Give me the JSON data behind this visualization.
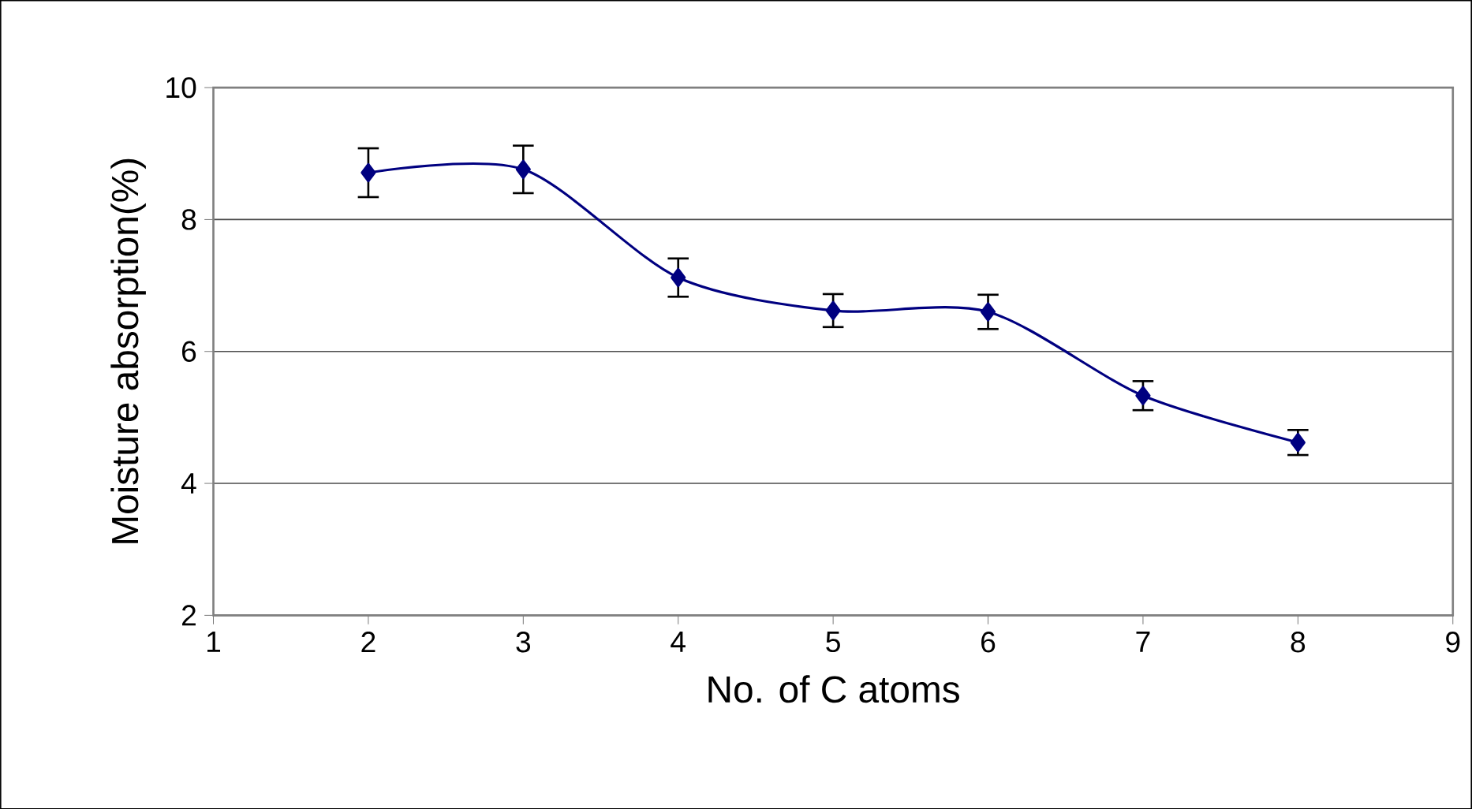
{
  "chart_data": {
    "type": "line",
    "xlabel": "No. of C atoms",
    "ylabel": "Moisture absorption(%)",
    "x": [
      2,
      3,
      4,
      5,
      6,
      7,
      8
    ],
    "series": [
      {
        "color": "#000080",
        "values": [
          8.71,
          8.76,
          7.12,
          6.62,
          6.6,
          5.33,
          4.62
        ],
        "errors": [
          0.37,
          0.36,
          0.29,
          0.25,
          0.26,
          0.22,
          0.19
        ]
      }
    ],
    "xlim": [
      1,
      9
    ],
    "xticks": [
      1,
      2,
      3,
      4,
      5,
      6,
      7,
      8,
      9
    ],
    "ylim": [
      2,
      10
    ],
    "yticks": [
      2,
      4,
      6,
      8,
      10
    ],
    "grid": "y",
    "marker": "diamond",
    "line_style": "solid"
  }
}
